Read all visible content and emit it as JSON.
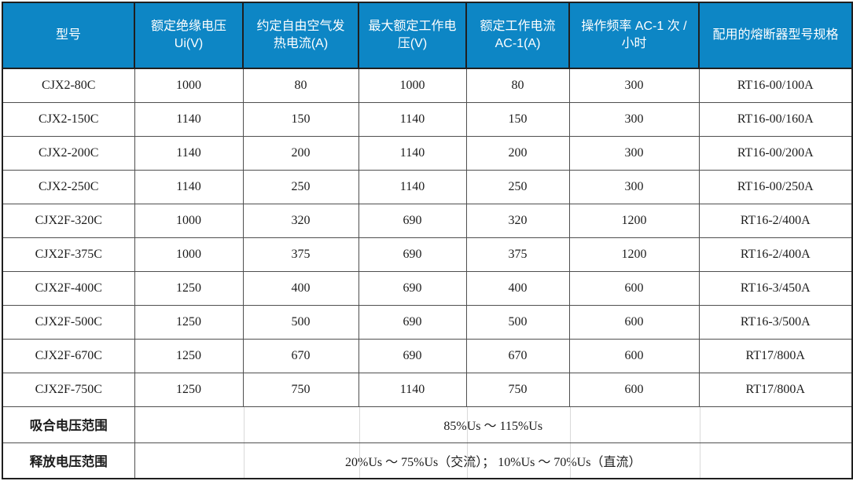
{
  "colors": {
    "header_bg": "#0d86c5",
    "header_text": "#ffffff",
    "border_dark": "#1f1f1f",
    "border_inner": "#4f4f4f",
    "border_faint": "#d9d9d9",
    "cell_text": "#1c1c1c"
  },
  "table": {
    "columns": [
      {
        "label": "型号"
      },
      {
        "label": "额定绝缘电压 Ui(V)"
      },
      {
        "label": "约定自由空气发热电流(A)"
      },
      {
        "label": "最大额定工作电压(V)"
      },
      {
        "label": "额定工作电流 AC-1(A)"
      },
      {
        "label": "操作频率 AC-1 次 / 小时"
      },
      {
        "label": "配用的熔断器型号规格"
      }
    ],
    "rows": [
      [
        "CJX2-80C",
        "1000",
        "80",
        "1000",
        "80",
        "300",
        "RT16-00/100A"
      ],
      [
        "CJX2-150C",
        "1140",
        "150",
        "1140",
        "150",
        "300",
        "RT16-00/160A"
      ],
      [
        "CJX2-200C",
        "1140",
        "200",
        "1140",
        "200",
        "300",
        "RT16-00/200A"
      ],
      [
        "CJX2-250C",
        "1140",
        "250",
        "1140",
        "250",
        "300",
        "RT16-00/250A"
      ],
      [
        "CJX2F-320C",
        "1000",
        "320",
        "690",
        "320",
        "1200",
        "RT16-2/400A"
      ],
      [
        "CJX2F-375C",
        "1000",
        "375",
        "690",
        "375",
        "1200",
        "RT16-2/400A"
      ],
      [
        "CJX2F-400C",
        "1250",
        "400",
        "690",
        "400",
        "600",
        "RT16-3/450A"
      ],
      [
        "CJX2F-500C",
        "1250",
        "500",
        "690",
        "500",
        "600",
        "RT16-3/500A"
      ],
      [
        "CJX2F-670C",
        "1250",
        "670",
        "690",
        "670",
        "600",
        "RT17/800A"
      ],
      [
        "CJX2F-750C",
        "1250",
        "750",
        "1140",
        "750",
        "600",
        "RT17/800A"
      ]
    ],
    "footer_rows": [
      {
        "label": "吸合电压范围",
        "value": "85%Us ～ 115%Us"
      },
      {
        "label": "释放电压范围",
        "value": "20%Us ～ 75%Us（交流）； 10%Us ～ 70%Us（直流）"
      }
    ]
  }
}
